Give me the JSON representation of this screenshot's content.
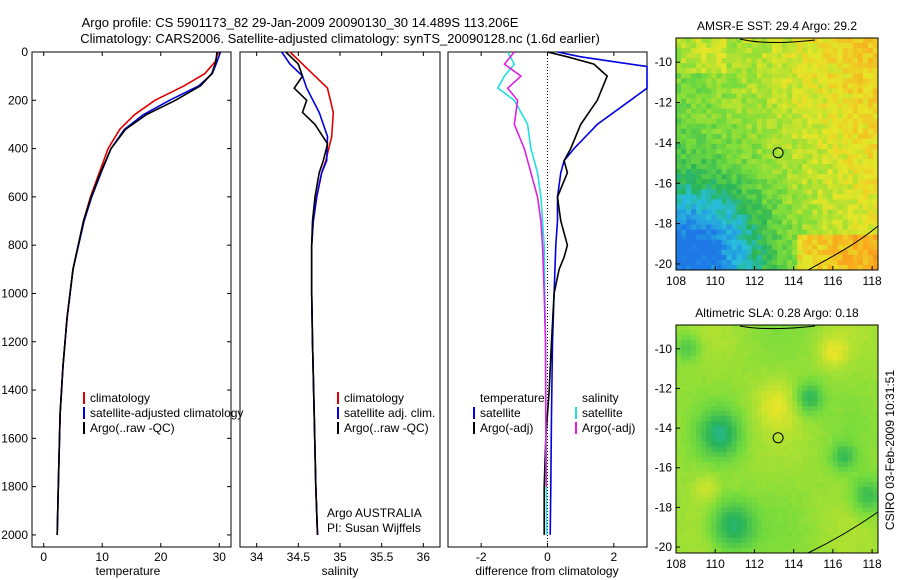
{
  "header": {
    "line1": "Argo profile: CS 5901173_82 29-Jan-2009 20090130_30 14.489S 113.206E",
    "line2": "Climatology: CARS2006. Satellite-adjusted climatology: synTS_20090128.nc (1.6d earlier)"
  },
  "colors": {
    "climatology": "#e00000",
    "satellite": "#0000e0",
    "argo": "#000000",
    "sal_sat": "#20e0e0",
    "sal_argo": "#e020e0"
  },
  "credit": "CSIRO 03-Feb-2009 10:31:51",
  "chart_data": [
    {
      "type": "line",
      "title": "",
      "xlabel": "temperature",
      "ylabel": "",
      "xlim": [
        -2,
        32
      ],
      "ylim": [
        2050,
        0
      ],
      "xticks": [
        "0",
        "10",
        "20",
        "30"
      ],
      "yticks": [
        "0",
        "200",
        "400",
        "600",
        "800",
        "1000",
        "1200",
        "1400",
        "1600",
        "1800",
        "2000"
      ],
      "legend": [
        "climatology",
        "satellite-adjusted climatology",
        "Argo(..raw -QC)"
      ],
      "series": [
        {
          "name": "climatology",
          "color": "#e00000",
          "x": [
            29.8,
            29.3,
            27.5,
            24,
            19,
            15.5,
            13,
            11,
            9.5,
            8,
            6.8,
            5,
            4,
            3.3,
            2.8,
            2.5,
            2.3
          ],
          "y": [
            0,
            40,
            90,
            140,
            200,
            260,
            320,
            400,
            500,
            600,
            700,
            900,
            1100,
            1300,
            1500,
            1800,
            2000
          ]
        },
        {
          "name": "satellite-adjusted climatology",
          "color": "#0000e0",
          "x": [
            30.2,
            29.6,
            28.8,
            26.5,
            21.5,
            17,
            13.8,
            11.5,
            9.8,
            8.2,
            6.9,
            5,
            4,
            3.3,
            2.8,
            2.5,
            2.3
          ],
          "y": [
            0,
            40,
            90,
            140,
            200,
            260,
            320,
            400,
            500,
            600,
            700,
            900,
            1100,
            1300,
            1500,
            1800,
            2000
          ]
        },
        {
          "name": "Argo(..raw -QC)",
          "color": "#000000",
          "x": [
            29.6,
            29.4,
            28.7,
            26.8,
            22.5,
            17.5,
            14,
            11.5,
            9.7,
            8.1,
            6.8,
            5,
            4,
            3.3,
            2.8,
            2.5,
            2.3
          ],
          "y": [
            0,
            40,
            90,
            140,
            200,
            260,
            320,
            400,
            500,
            600,
            700,
            900,
            1100,
            1300,
            1500,
            1800,
            2000
          ]
        }
      ]
    },
    {
      "type": "line",
      "title": "",
      "xlabel": "salinity",
      "ylabel": "",
      "xlim": [
        33.8,
        36.2
      ],
      "ylim": [
        2050,
        0
      ],
      "xticks": [
        "34",
        "34.5",
        "35",
        "35.5",
        "36"
      ],
      "legend": [
        "climatology",
        "satellite adj. clim.",
        "Argo(..raw -QC)"
      ],
      "notes": [
        "Argo AUSTRALIA",
        "PI: Susan Wijffels"
      ],
      "series": [
        {
          "name": "climatology",
          "color": "#e00000",
          "x": [
            34.4,
            34.55,
            34.7,
            34.85,
            34.92,
            34.9,
            34.83,
            34.78,
            34.72,
            34.68,
            34.66,
            34.66,
            34.67,
            34.69,
            34.71,
            34.73
          ],
          "y": [
            0,
            50,
            100,
            150,
            250,
            350,
            450,
            500,
            600,
            700,
            800,
            1000,
            1200,
            1500,
            1800,
            2000
          ]
        },
        {
          "name": "satellite adj. clim.",
          "color": "#0000e0",
          "x": [
            34.3,
            34.4,
            34.55,
            34.6,
            34.75,
            34.85,
            34.84,
            34.78,
            34.72,
            34.68,
            34.66,
            34.66,
            34.67,
            34.69,
            34.71,
            34.73
          ],
          "y": [
            0,
            50,
            100,
            150,
            250,
            350,
            450,
            500,
            600,
            700,
            800,
            1000,
            1200,
            1500,
            1800,
            2000
          ]
        },
        {
          "name": "Argo(..raw -QC)",
          "color": "#000000",
          "x": [
            34.35,
            34.5,
            34.55,
            34.45,
            34.6,
            34.55,
            34.7,
            34.85,
            34.8,
            34.75,
            34.7,
            34.67,
            34.66,
            34.66,
            34.67,
            34.69,
            34.71,
            34.73
          ],
          "y": [
            0,
            50,
            100,
            150,
            200,
            250,
            300,
            380,
            450,
            500,
            600,
            700,
            800,
            1000,
            1200,
            1500,
            1800,
            2000
          ]
        }
      ]
    },
    {
      "type": "line",
      "title": "",
      "xlabel": "difference from climatology",
      "ylabel": "",
      "xlim": [
        -3,
        3
      ],
      "ylim": [
        2050,
        0
      ],
      "xticks": [
        "-2",
        "0",
        "2"
      ],
      "legend_temperature": [
        "temperature",
        "satellite",
        "Argo(-adj)"
      ],
      "legend_salinity": [
        "salinity",
        "satellite",
        "Argo(-adj)"
      ],
      "series": [
        {
          "name": "temperature satellite",
          "color": "#0000e0",
          "x": [
            0.3,
            1.0,
            2.0,
            3.0,
            3.0,
            1.5,
            0.8,
            0.5,
            0.4,
            0.3,
            0.3,
            0.25,
            0.2,
            0.15,
            0.12,
            0.1,
            0.08
          ],
          "y": [
            0,
            20,
            40,
            60,
            150,
            300,
            400,
            450,
            500,
            600,
            700,
            800,
            1000,
            1200,
            1500,
            1800,
            2000
          ]
        },
        {
          "name": "temperature Argo(-adj)",
          "color": "#000000",
          "x": [
            0.0,
            0.6,
            1.4,
            1.8,
            1.5,
            1.0,
            0.7,
            0.5,
            0.6,
            0.3,
            0.35,
            0.4,
            0.6,
            0.5,
            0.35,
            0.2,
            0.12,
            0.05,
            -0.05,
            -0.1,
            -0.1
          ],
          "y": [
            0,
            20,
            50,
            100,
            200,
            300,
            400,
            450,
            500,
            600,
            650,
            700,
            800,
            850,
            900,
            1000,
            1200,
            1400,
            1600,
            1800,
            2000
          ]
        },
        {
          "name": "salinity satellite",
          "color": "#20e0e0",
          "x": [
            -1.2,
            -1.0,
            -1.3,
            -1.5,
            -1.0,
            -0.6,
            -0.5,
            -0.3,
            -0.2,
            -0.15,
            -0.1,
            -0.08,
            -0.06,
            -0.05,
            -0.04,
            -0.03
          ],
          "y": [
            0,
            50,
            100,
            150,
            200,
            300,
            400,
            500,
            600,
            700,
            800,
            1000,
            1200,
            1500,
            1800,
            2000
          ]
        },
        {
          "name": "salinity Argo(-adj)",
          "color": "#e020e0",
          "x": [
            -1.0,
            -1.3,
            -0.8,
            -1.2,
            -0.9,
            -1.0,
            -0.7,
            -0.5,
            -0.3,
            -0.2,
            -0.15,
            -0.1,
            -0.06,
            -0.05,
            -0.04
          ],
          "y": [
            0,
            50,
            100,
            150,
            200,
            300,
            400,
            500,
            600,
            700,
            800,
            1000,
            1200,
            1500,
            1800
          ]
        }
      ]
    },
    {
      "type": "heatmap",
      "title": "AMSR-E SST: 29.4 Argo: 29.2",
      "xlabel": "",
      "ylabel": "",
      "xlim": [
        108,
        118.3
      ],
      "ylim": [
        -20.3,
        -8.8
      ],
      "xticks": [
        "108",
        "110",
        "112",
        "114",
        "116",
        "118"
      ],
      "yticks": [
        "-10",
        "-12",
        "-14",
        "-16",
        "-18",
        "-20"
      ],
      "argo_position": [
        113.206,
        -14.489
      ]
    },
    {
      "type": "heatmap",
      "title": "Altimetric SLA: 0.28 Argo: 0.18",
      "xlabel": "",
      "ylabel": "",
      "xlim": [
        108,
        118.3
      ],
      "ylim": [
        -20.3,
        -8.8
      ],
      "xticks": [
        "108",
        "110",
        "112",
        "114",
        "116",
        "118"
      ],
      "yticks": [
        "-10",
        "-12",
        "-14",
        "-16",
        "-18",
        "-20"
      ],
      "argo_position": [
        113.206,
        -14.489
      ]
    }
  ]
}
